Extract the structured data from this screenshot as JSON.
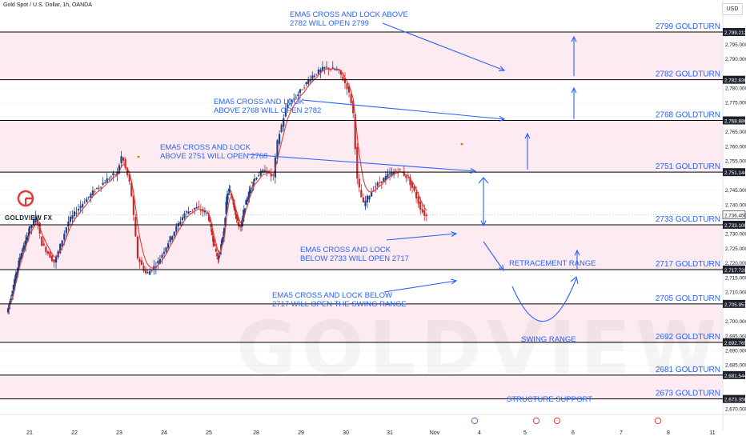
{
  "header": {
    "symbol_title": "Gold Spot / U.S. Dollar, 1h, OANDA",
    "currency_button": "USD"
  },
  "brand": {
    "logo_text": "GOLDVIEW FX",
    "watermark": "GOLDVIEW"
  },
  "colors": {
    "level_line": "#000000",
    "zone_fill": "#fce4ec",
    "annotation": "#2962ff",
    "candle_up": "#1e3f8a",
    "candle_down": "#c62828",
    "ema": "#e53935",
    "price_tag_bg": "#1e222d",
    "current_price_bg": "#ffffff"
  },
  "chart_data": {
    "type": "candlestick",
    "title": "Gold Spot / U.S. Dollar, 1h, OANDA",
    "x_axis_ticks": [
      "21",
      "22",
      "23",
      "24",
      "25",
      "28",
      "29",
      "30",
      "31",
      "Nov",
      "4",
      "5",
      "6",
      "7",
      "8",
      "11"
    ],
    "y_axis_ticks": [
      "2,795.000",
      "2,790.000",
      "2,785.000",
      "2,780.000",
      "2,775.000",
      "2,770.000",
      "2,765.000",
      "2,760.000",
      "2,755.000",
      "2,750.000",
      "2,745.000",
      "2,740.000",
      "2,735.000",
      "2,730.000",
      "2,725.000",
      "2,720.000",
      "2,715.000",
      "2,710.000",
      "2,705.000",
      "2,700.000",
      "2,695.000",
      "2,690.000",
      "2,685.000",
      "2,680.000",
      "2,675.000",
      "2,670.000"
    ],
    "ylim": [
      2668,
      2803
    ],
    "price_levels": [
      {
        "label": "2799 GOLDTURN",
        "tag": "2,799.212",
        "value": 2799.212
      },
      {
        "label": "2782 GOLDTURN",
        "tag": "2,782.836",
        "value": 2782.836
      },
      {
        "label": "2768 GOLDTURN",
        "tag": "2,768.886",
        "value": 2768.886
      },
      {
        "label": "2751 GOLDTURN",
        "tag": "2,751.144",
        "value": 2751.144
      },
      {
        "label": "2733 GOLDTURN",
        "tag": "2,733.100",
        "value": 2733.1
      },
      {
        "label": "2717 GOLDTURN",
        "tag": "2,717.720",
        "value": 2717.72
      },
      {
        "label": "2705 GOLDTURN",
        "tag": "2,705.957",
        "value": 2705.957
      },
      {
        "label": "2692 GOLDTURN",
        "tag": "2,692.765",
        "value": 2692.765
      },
      {
        "label": "2681 GOLDTURN",
        "tag": "2,681.544",
        "value": 2681.544
      },
      {
        "label": "2673 GOLDTURN",
        "tag": "2,673.356",
        "value": 2673.356
      }
    ],
    "current_price": {
      "tag": "2,736.450",
      "value": 2736.45
    },
    "zones": [
      {
        "from": 2782.836,
        "to": 2799.212
      },
      {
        "from": 2751.144,
        "to": 2768.886
      },
      {
        "from": 2717.72,
        "to": 2733.1
      },
      {
        "from": 2692.765,
        "to": 2705.957
      },
      {
        "from": 2673.356,
        "to": 2681.544
      }
    ],
    "annotations": [
      {
        "line1": "EMA5 CROSS AND LOCK ABOVE",
        "line2": "2782 WILL OPEN 2799"
      },
      {
        "line1": "EMA5 CROSS AND LOCK",
        "line2": "ABOVE 2768 WILL OPEN 2782"
      },
      {
        "line1": "EMA5 CROSS AND LOCK",
        "line2": "ABOVE 2751 WILL OPEN 2768"
      },
      {
        "line1": "EMA5 CROSS AND LOCK",
        "line2": "BELOW 2733 WILL OPEN 2717"
      },
      {
        "line1": "EMA5 CROSS AND LOCK BELOW",
        "line2": "2717 WILL OPEN THE SWING RANGE"
      }
    ],
    "zone_labels": [
      "RETRACEMENT RANGE",
      "SWING RANGE",
      "STRUCTURE SUPPORT"
    ],
    "price_path": [
      {
        "day": 20.0,
        "price": 2703
      },
      {
        "day": 20.3,
        "price": 2712
      },
      {
        "day": 20.6,
        "price": 2722
      },
      {
        "day": 20.9,
        "price": 2728
      },
      {
        "day": 21.2,
        "price": 2736
      },
      {
        "day": 21.3,
        "price": 2727
      },
      {
        "day": 21.6,
        "price": 2720
      },
      {
        "day": 21.9,
        "price": 2734
      },
      {
        "day": 22.2,
        "price": 2740
      },
      {
        "day": 22.5,
        "price": 2745
      },
      {
        "day": 22.8,
        "price": 2749
      },
      {
        "day": 23.0,
        "price": 2751
      },
      {
        "day": 23.1,
        "price": 2757
      },
      {
        "day": 23.3,
        "price": 2746
      },
      {
        "day": 23.45,
        "price": 2722
      },
      {
        "day": 23.65,
        "price": 2716
      },
      {
        "day": 23.9,
        "price": 2720
      },
      {
        "day": 24.2,
        "price": 2729
      },
      {
        "day": 24.5,
        "price": 2737
      },
      {
        "day": 24.75,
        "price": 2739
      },
      {
        "day": 25.0,
        "price": 2737
      },
      {
        "day": 25.2,
        "price": 2729
      },
      {
        "day": 25.45,
        "price": 2721
      },
      {
        "day": 25.7,
        "price": 2730
      },
      {
        "day": 25.85,
        "price": 2743
      },
      {
        "day": 25.95,
        "price": 2745
      },
      {
        "day": 26.1,
        "price": 2742
      },
      {
        "day": 26.3,
        "price": 2734
      },
      {
        "day": 26.45,
        "price": 2732
      },
      {
        "day": 26.65,
        "price": 2740
      },
      {
        "day": 26.9,
        "price": 2746
      },
      {
        "day": 27.1,
        "price": 2750
      },
      {
        "day": 27.3,
        "price": 2752
      },
      {
        "day": 27.45,
        "price": 2749
      },
      {
        "day": 27.55,
        "price": 2762
      },
      {
        "day": 27.75,
        "price": 2774
      },
      {
        "day": 28.0,
        "price": 2778
      },
      {
        "day": 28.3,
        "price": 2784
      },
      {
        "day": 28.6,
        "price": 2787
      },
      {
        "day": 28.9,
        "price": 2786
      },
      {
        "day": 29.1,
        "price": 2780
      },
      {
        "day": 29.22,
        "price": 2773
      },
      {
        "day": 29.32,
        "price": 2748
      },
      {
        "day": 29.45,
        "price": 2740
      },
      {
        "day": 29.7,
        "price": 2746
      },
      {
        "day": 30.0,
        "price": 2750
      },
      {
        "day": 30.25,
        "price": 2752
      },
      {
        "day": 30.45,
        "price": 2749
      },
      {
        "day": 30.6,
        "price": 2744
      },
      {
        "day": 30.75,
        "price": 2738
      },
      {
        "day": 30.85,
        "price": 2736
      }
    ]
  }
}
